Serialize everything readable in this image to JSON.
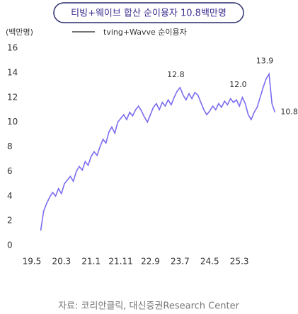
{
  "chart_data": {
    "type": "line",
    "title": "티빙+웨이브 합산 순이용자 10.8백만명",
    "y_label": "(백만명)",
    "source": "자료: 코리안클릭, 대신증권Research Center",
    "x": [
      7,
      8,
      9,
      10,
      11,
      12,
      13,
      14,
      15,
      16,
      17,
      18,
      19,
      20,
      21,
      22,
      23,
      24,
      25,
      26,
      27,
      28,
      29,
      30,
      31,
      32,
      33,
      34,
      35,
      36,
      37,
      38,
      39,
      40,
      41,
      42,
      43,
      44,
      45,
      46,
      47,
      48,
      49,
      50,
      51,
      52,
      53,
      54,
      55,
      56,
      57,
      58,
      59,
      60,
      61,
      62,
      63,
      64,
      65,
      66,
      67,
      68,
      69,
      70,
      71,
      72,
      73,
      74,
      75,
      76,
      77,
      78,
      79,
      80,
      81,
      82,
      83,
      84,
      85,
      86
    ],
    "series": [
      {
        "name": "tving+Wavve 순이용자",
        "color": "#7a6cf0",
        "values": [
          1.2,
          2.8,
          3.4,
          3.9,
          4.3,
          4.0,
          4.6,
          4.2,
          5.0,
          5.3,
          5.6,
          5.2,
          6.0,
          6.4,
          6.1,
          6.8,
          6.5,
          7.2,
          7.6,
          7.3,
          8.0,
          8.6,
          8.3,
          9.2,
          9.6,
          9.1,
          10.0,
          10.3,
          10.6,
          10.2,
          10.8,
          10.5,
          11.0,
          11.3,
          10.9,
          10.4,
          10.0,
          10.6,
          11.2,
          11.5,
          11.0,
          11.6,
          11.3,
          11.8,
          11.4,
          12.0,
          12.5,
          12.8,
          12.2,
          11.8,
          12.3,
          11.9,
          12.4,
          12.2,
          11.6,
          11.0,
          10.6,
          10.9,
          11.3,
          11.0,
          11.5,
          11.2,
          11.7,
          11.4,
          11.9,
          11.6,
          11.8,
          11.3,
          12.0,
          11.5,
          10.6,
          10.2,
          10.8,
          11.2,
          12.0,
          12.8,
          13.5,
          13.9,
          11.5,
          10.8
        ],
        "value_labels": [
          null,
          null,
          null,
          null,
          null,
          null,
          null,
          null,
          null,
          null,
          null,
          null,
          null,
          null,
          null,
          null,
          null,
          null,
          null,
          null,
          null,
          null,
          null,
          null,
          null,
          null,
          null,
          null,
          null,
          null,
          null,
          null,
          null,
          null,
          null,
          null,
          null,
          null,
          null,
          null,
          null,
          null,
          null,
          null,
          null,
          null,
          null,
          "12.8",
          null,
          null,
          null,
          null,
          null,
          null,
          null,
          null,
          null,
          null,
          null,
          null,
          null,
          null,
          null,
          null,
          null,
          null,
          null,
          null,
          "12.0",
          null,
          null,
          null,
          null,
          null,
          null,
          null,
          null,
          "13.9",
          null,
          "10.8"
        ]
      }
    ],
    "xlim": [
      -1,
      89
    ],
    "xticks": [
      {
        "value": 4,
        "label": "19.5"
      },
      {
        "value": 14,
        "label": "20.3"
      },
      {
        "value": 24,
        "label": "21.1"
      },
      {
        "value": 34,
        "label": "21.11"
      },
      {
        "value": 44,
        "label": "22.9"
      },
      {
        "value": 54,
        "label": "23.7"
      },
      {
        "value": 64,
        "label": "24.5"
      },
      {
        "value": 74,
        "label": "25.3"
      }
    ],
    "ylim": [
      0,
      16
    ],
    "yticks": [
      0,
      2,
      4,
      6,
      8,
      10,
      12,
      14,
      16
    ],
    "grid": false
  }
}
